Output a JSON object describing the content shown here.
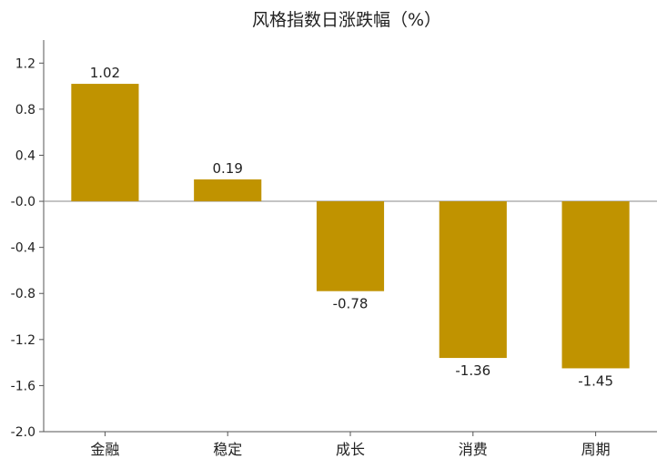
{
  "chart_data": {
    "type": "bar",
    "title": "风格指数日涨跌幅（%）",
    "xlabel": "",
    "ylabel": "",
    "categories": [
      "金融",
      "稳定",
      "成长",
      "消费",
      "周期"
    ],
    "values": [
      1.02,
      0.19,
      -0.78,
      -1.36,
      -1.45
    ],
    "data_labels": [
      "1.02",
      "0.19",
      "-0.78",
      "-1.36",
      "-1.45"
    ],
    "ylim": [
      -2.0,
      1.4
    ],
    "yticks": [
      1.2,
      0.8,
      0.4,
      0.0,
      -0.4,
      -0.8,
      -1.2,
      -1.6,
      -2.0
    ],
    "ytick_labels": [
      "1.2",
      "0.8",
      "0.4",
      "-0.0",
      "-0.4",
      "-0.8",
      "-1.2",
      "-1.6",
      "-2.0"
    ],
    "bar_color": "#C09300",
    "grid": false,
    "legend": "none"
  }
}
